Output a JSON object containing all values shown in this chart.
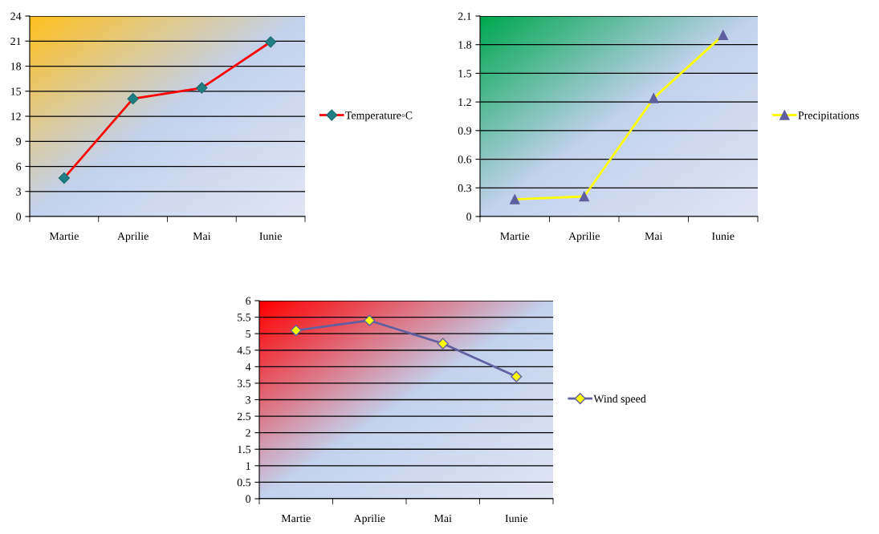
{
  "chart_data": [
    {
      "type": "line",
      "categories": [
        "Martie",
        "Aprilie",
        "Mai",
        "Iunie"
      ],
      "series": [
        {
          "name": "Temperature◦C",
          "color": "#ff0000",
          "values": [
            4.6,
            14.1,
            15.4,
            20.9
          ]
        }
      ],
      "ylim": [
        0,
        24
      ],
      "yticks": [
        0,
        3,
        6,
        9,
        12,
        15,
        18,
        21,
        24
      ],
      "grid": "y",
      "legend": "right",
      "marker": "diamond",
      "line_style": "solid"
    },
    {
      "type": "line",
      "categories": [
        "Martie",
        "Aprilie",
        "Mai",
        "Iunie"
      ],
      "series": [
        {
          "name": "Precipitations",
          "color": "#ffff00",
          "values": [
            0.18,
            0.21,
            1.24,
            1.9
          ]
        }
      ],
      "ylim": [
        0,
        2.1
      ],
      "yticks": [
        0,
        0.3,
        0.6,
        0.9,
        1.2,
        1.5,
        1.8,
        2.1
      ],
      "grid": "y",
      "legend": "right",
      "marker": "triangle",
      "line_style": "solid"
    },
    {
      "type": "line",
      "categories": [
        "Martie",
        "Aprilie",
        "Mai",
        "Iunie"
      ],
      "series": [
        {
          "name": "Wind speed",
          "color": "#6060a0",
          "values": [
            5.1,
            5.4,
            4.7,
            3.7
          ]
        }
      ],
      "ylim": [
        0,
        6
      ],
      "yticks": [
        0,
        0.5,
        1,
        1.5,
        2,
        2.5,
        3,
        3.5,
        4,
        4.5,
        5,
        5.5,
        6
      ],
      "grid": "y",
      "legend": "right",
      "marker": "diamond",
      "line_style": "solid"
    }
  ]
}
